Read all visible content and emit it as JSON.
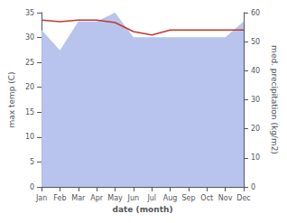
{
  "chart_data": {
    "type": "line",
    "categories": [
      "Jan",
      "Feb",
      "Mar",
      "Apr",
      "May",
      "Jun",
      "Jul",
      "Aug",
      "Sep",
      "Oct",
      "Nov",
      "Dec"
    ],
    "series": [
      {
        "type": "area",
        "axis": "y2",
        "color": "#b8c4ee",
        "values": [
          54.0,
          47.0,
          57.0,
          57.0,
          60.0,
          51.5,
          51.5,
          51.5,
          51.5,
          51.5,
          51.5,
          57.0
        ]
      },
      {
        "type": "line",
        "color": "#c0392b",
        "values": [
          33.5,
          33.2,
          33.5,
          33.5,
          33.0,
          31.2,
          30.5,
          31.5,
          31.5,
          31.5,
          31.5,
          31.5
        ]
      }
    ],
    "xlabel": "date (month)",
    "ylabel": "max temp (C)",
    "y2label": "med. precipitation (kg/m2)",
    "ylim": [
      0,
      35
    ],
    "yticks": [
      0,
      5,
      10,
      15,
      20,
      25,
      30,
      35
    ],
    "y2lim": [
      0,
      60
    ],
    "y2ticks": [
      0,
      10,
      20,
      30,
      40,
      50,
      60
    ],
    "grid": false
  }
}
